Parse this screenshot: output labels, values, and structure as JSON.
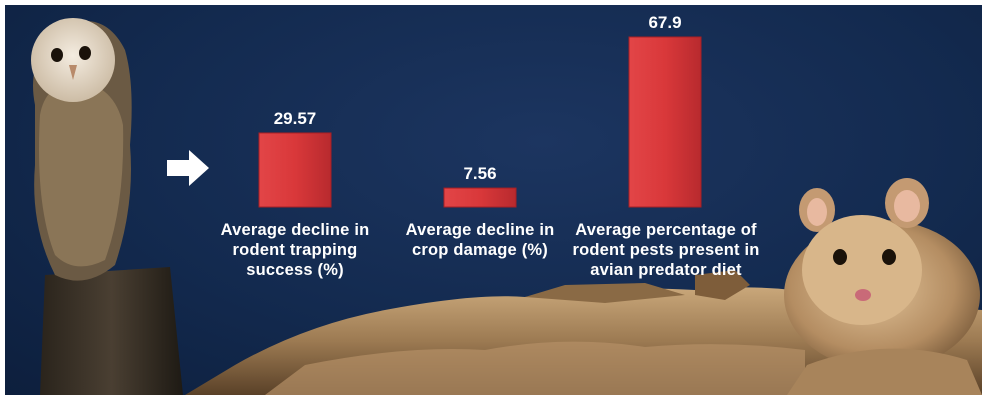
{
  "chart_data": {
    "type": "bar",
    "categories": [
      [
        "Average decline in",
        "rodent trapping",
        "success (%)"
      ],
      [
        "Average decline in",
        "crop damage (%)"
      ],
      [
        "Average percentage of",
        "rodent pests present in",
        "avian predator diet"
      ]
    ],
    "values": [
      29.57,
      7.56,
      67.9
    ],
    "value_labels": [
      "29.57",
      "7.56",
      "67.9"
    ],
    "ylim": [
      0,
      67.9
    ],
    "grid": false,
    "legend": "none",
    "colors": {
      "bar": "#d9383a",
      "bar_dark": "#a81f24",
      "background": "#132a4f",
      "text": "#ffffff"
    }
  },
  "decorations": {
    "arrow": "arrow-right-icon",
    "left_image": "barn-owl-on-post",
    "right_image": "gerbil-on-sand"
  }
}
